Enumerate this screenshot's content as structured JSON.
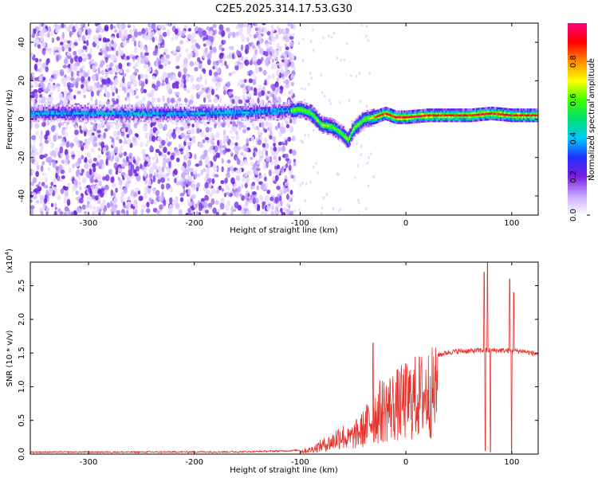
{
  "title": "C2E5.2025.314.17.53.G30",
  "chart_data": [
    {
      "type": "heatmap",
      "xlabel": "Height of straight line (km)",
      "ylabel": "Frequency (Hz)",
      "xlim": [
        -355,
        125
      ],
      "ylim": [
        -50,
        50
      ],
      "xticks": [
        -300,
        -200,
        -100,
        0,
        100
      ],
      "yticks": [
        -40,
        -20,
        0,
        20,
        40
      ],
      "colorbar": {
        "label": "Normalized spectral amplitude",
        "range": [
          0,
          1
        ],
        "ticks": [
          0.0,
          0.2,
          0.4,
          0.6,
          0.8
        ],
        "stops": [
          "#ffffff",
          "#c8a8ff",
          "#7a1ee0",
          "#2030ff",
          "#00c8ff",
          "#00e070",
          "#40ff00",
          "#ffff00",
          "#ff8c00",
          "#ff0000",
          "#ff0080"
        ]
      },
      "ridge": [
        {
          "x": -355,
          "y": 3
        },
        {
          "x": -300,
          "y": 3
        },
        {
          "x": -250,
          "y": 3
        },
        {
          "x": -200,
          "y": 3
        },
        {
          "x": -150,
          "y": 3.5
        },
        {
          "x": -110,
          "y": 4.5
        },
        {
          "x": -100,
          "y": 5
        },
        {
          "x": -90,
          "y": 3
        },
        {
          "x": -80,
          "y": -3
        },
        {
          "x": -70,
          "y": -4
        },
        {
          "x": -60,
          "y": -8
        },
        {
          "x": -55,
          "y": -11
        },
        {
          "x": -50,
          "y": -5
        },
        {
          "x": -40,
          "y": 0
        },
        {
          "x": -30,
          "y": 1
        },
        {
          "x": -20,
          "y": 3
        },
        {
          "x": -10,
          "y": 1
        },
        {
          "x": 0,
          "y": 1
        },
        {
          "x": 20,
          "y": 2
        },
        {
          "x": 60,
          "y": 2
        },
        {
          "x": 80,
          "y": 3
        },
        {
          "x": 100,
          "y": 2
        },
        {
          "x": 125,
          "y": 2
        }
      ]
    },
    {
      "type": "line",
      "xlabel": "Height of straight line (km)",
      "ylabel": "SNR (10 * v/v)",
      "yscale_label": "(x10",
      "yscale_exp": "4",
      "scale": 10000,
      "xlim": [
        -355,
        125
      ],
      "ylim": [
        0,
        28500
      ],
      "xticks": [
        -300,
        -200,
        -100,
        0,
        100
      ],
      "yticks": [
        0,
        5000,
        10000,
        15000,
        20000,
        25000
      ],
      "ytick_labels": [
        "0.0",
        "0.5",
        "1.0",
        "1.5",
        "2.0",
        "2.5"
      ],
      "color": "#e8302a",
      "envelope": [
        {
          "x": -355,
          "y": 300
        },
        {
          "x": -250,
          "y": 300
        },
        {
          "x": -150,
          "y": 350
        },
        {
          "x": -110,
          "y": 500
        },
        {
          "x": -100,
          "y": 600
        },
        {
          "x": -90,
          "y": 1000
        },
        {
          "x": -80,
          "y": 2000
        },
        {
          "x": -70,
          "y": 2800
        },
        {
          "x": -62,
          "y": 4500
        },
        {
          "x": -55,
          "y": 3500
        },
        {
          "x": -48,
          "y": 4500
        },
        {
          "x": -40,
          "y": 6000
        },
        {
          "x": -32,
          "y": 8500
        },
        {
          "x": -25,
          "y": 10000
        },
        {
          "x": -18,
          "y": 11000
        },
        {
          "x": -10,
          "y": 11500
        },
        {
          "x": 0,
          "y": 12500
        },
        {
          "x": 10,
          "y": 13500
        },
        {
          "x": 20,
          "y": 14300
        },
        {
          "x": 30,
          "y": 14700
        },
        {
          "x": 40,
          "y": 15100
        },
        {
          "x": 50,
          "y": 15300
        },
        {
          "x": 60,
          "y": 15300
        },
        {
          "x": 70,
          "y": 15400
        },
        {
          "x": 80,
          "y": 15400
        },
        {
          "x": 90,
          "y": 15400
        },
        {
          "x": 100,
          "y": 15300
        },
        {
          "x": 110,
          "y": 15300
        },
        {
          "x": 125,
          "y": 14800
        }
      ],
      "spikes": [
        {
          "x": -31,
          "y": 16500
        },
        {
          "x": 74,
          "y": 27000
        },
        {
          "x": 75,
          "y": 500
        },
        {
          "x": 77,
          "y": 28500
        },
        {
          "x": 80,
          "y": 300
        },
        {
          "x": 98,
          "y": 26000
        },
        {
          "x": 100,
          "y": 300
        },
        {
          "x": 102,
          "y": 24000
        }
      ]
    }
  ]
}
